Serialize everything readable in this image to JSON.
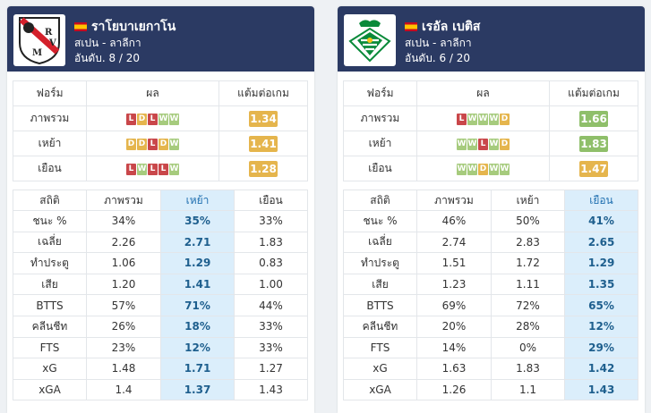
{
  "colors": {
    "win": "#a6cb7d",
    "draw": "#e5b54d",
    "loss": "#c9474a",
    "header_bg": "#2b3a63",
    "highlight": "#dbeefb"
  },
  "teams": [
    {
      "name": "ราโยบาเยกาโน",
      "league": "สเปน - ลาลีกา",
      "rank": "อันดับ. 8 / 20",
      "logo_letters": "RVM",
      "form_headers": [
        "ฟอร์ม",
        "ผล",
        "แต้มต่อเกม"
      ],
      "form_rows": [
        {
          "label": "ภาพรวม",
          "results": [
            "L",
            "D",
            "L",
            "W",
            "W"
          ],
          "ppg": "1.34",
          "ppg_color": "#e5b54d"
        },
        {
          "label": "เหย้า",
          "results": [
            "D",
            "D",
            "L",
            "D",
            "W"
          ],
          "ppg": "1.41",
          "ppg_color": "#e5b54d"
        },
        {
          "label": "เยือน",
          "results": [
            "L",
            "W",
            "L",
            "L",
            "W"
          ],
          "ppg": "1.28",
          "ppg_color": "#e5b54d"
        }
      ],
      "stats_headers": [
        "สถิติ",
        "ภาพรวม",
        "เหย้า",
        "เยือน"
      ],
      "highlight_col": 2,
      "stats_rows": [
        {
          "label": "ชนะ %",
          "values": [
            "34%",
            "35%",
            "33%"
          ]
        },
        {
          "label": "เฉลี่ย",
          "values": [
            "2.26",
            "2.71",
            "1.83"
          ]
        },
        {
          "label": "ทำประตู",
          "values": [
            "1.06",
            "1.29",
            "0.83"
          ]
        },
        {
          "label": "เสีย",
          "values": [
            "1.20",
            "1.41",
            "1.00"
          ]
        },
        {
          "label": "BTTS",
          "values": [
            "57%",
            "71%",
            "44%"
          ]
        },
        {
          "label": "คลีนชีท",
          "values": [
            "26%",
            "18%",
            "33%"
          ]
        },
        {
          "label": "FTS",
          "values": [
            "23%",
            "12%",
            "33%"
          ]
        },
        {
          "label": "xG",
          "values": [
            "1.48",
            "1.71",
            "1.27"
          ]
        },
        {
          "label": "xGA",
          "values": [
            "1.4",
            "1.37",
            "1.43"
          ]
        }
      ]
    },
    {
      "name": "เรอัล เบติส",
      "league": "สเปน - ลาลีกา",
      "rank": "อันดับ. 6 / 20",
      "logo_letters": "",
      "form_headers": [
        "ฟอร์ม",
        "ผล",
        "แต้มต่อเกม"
      ],
      "form_rows": [
        {
          "label": "ภาพรวม",
          "results": [
            "L",
            "W",
            "W",
            "W",
            "D"
          ],
          "ppg": "1.66",
          "ppg_color": "#8fbf6a"
        },
        {
          "label": "เหย้า",
          "results": [
            "W",
            "W",
            "L",
            "W",
            "D"
          ],
          "ppg": "1.83",
          "ppg_color": "#8fbf6a"
        },
        {
          "label": "เยือน",
          "results": [
            "W",
            "W",
            "D",
            "W",
            "W"
          ],
          "ppg": "1.47",
          "ppg_color": "#e5b54d"
        }
      ],
      "stats_headers": [
        "สถิติ",
        "ภาพรวม",
        "เหย้า",
        "เยือน"
      ],
      "highlight_col": 3,
      "stats_rows": [
        {
          "label": "ชนะ %",
          "values": [
            "46%",
            "50%",
            "41%"
          ]
        },
        {
          "label": "เฉลี่ย",
          "values": [
            "2.74",
            "2.83",
            "2.65"
          ]
        },
        {
          "label": "ทำประตู",
          "values": [
            "1.51",
            "1.72",
            "1.29"
          ]
        },
        {
          "label": "เสีย",
          "values": [
            "1.23",
            "1.11",
            "1.35"
          ]
        },
        {
          "label": "BTTS",
          "values": [
            "69%",
            "72%",
            "65%"
          ]
        },
        {
          "label": "คลีนชีท",
          "values": [
            "20%",
            "28%",
            "12%"
          ]
        },
        {
          "label": "FTS",
          "values": [
            "14%",
            "0%",
            "29%"
          ]
        },
        {
          "label": "xG",
          "values": [
            "1.63",
            "1.83",
            "1.42"
          ]
        },
        {
          "label": "xGA",
          "values": [
            "1.26",
            "1.1",
            "1.43"
          ]
        }
      ]
    }
  ]
}
